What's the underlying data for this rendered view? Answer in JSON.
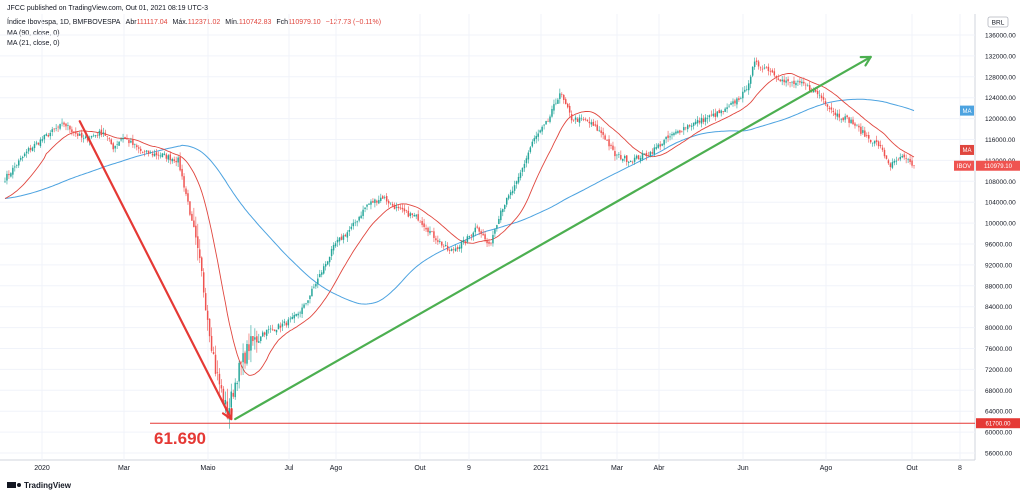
{
  "header": {
    "published": "JFCC published on TradingView.com, Out 01, 2021 08:19 UTC-3",
    "symbol": "Índice Ibovespa, 1D, BMFBOVESPA",
    "ohlc_labels": {
      "open": "Abr",
      "high": "Máx.",
      "low": "Mín.",
      "close": "Fch"
    },
    "ohlc_values": {
      "open": "111117.04",
      "high": "112371.02",
      "low": "110742.83",
      "close": "110979.10",
      "change": "−127.73 (−0.11%)"
    },
    "indicators": [
      "MA (90, close, 0)",
      "MA (21, close, 0)"
    ]
  },
  "currency": "BRL",
  "footer": {
    "brand": "TradingView"
  },
  "annotation": {
    "label": "61.690"
  },
  "tags": {
    "ma_slow": "MA",
    "ma_fast": "MA",
    "ibov": "IBOV",
    "ibov_value": "110979.10",
    "support_value": "61700.00"
  },
  "colors": {
    "up": "#26a69a",
    "down": "#ef5350",
    "ma90": "#4da3e0",
    "ma21": "#e0463e",
    "trend": "#4caf50",
    "arrow": "#e53935",
    "ibov_tag": "#ef5350"
  },
  "chart_data": {
    "type": "candlestick",
    "symbol": "Índice Ibovespa, 1D, BMFBOVESPA",
    "ylim": [
      54000,
      138000
    ],
    "yticks": [
      56000,
      60000,
      64000,
      68000,
      72000,
      76000,
      80000,
      84000,
      88000,
      92000,
      96000,
      100000,
      104000,
      108000,
      112000,
      116000,
      120000,
      124000,
      128000,
      132000,
      136000
    ],
    "ytick_labels": [
      "56000.00",
      "60000.00",
      "64000.00",
      "68000.00",
      "72000.00",
      "76000.00",
      "80000.00",
      "84000.00",
      "88000.00",
      "92000.00",
      "96000.00",
      "100000.00",
      "104000.00",
      "108000.00",
      "112000.00",
      "116000.00",
      "120000.00",
      "124000.00",
      "128000.00",
      "132000.00",
      "136000.00"
    ],
    "xtick_labels": [
      "2020",
      "Mar",
      "Maio",
      "Jul",
      "Ago",
      "Out",
      "9",
      "2021",
      "Mar",
      "Abr",
      "Jun",
      "Ago",
      "Out",
      "8"
    ],
    "anchors": [
      [
        0,
        108500
      ],
      [
        12,
        114000
      ],
      [
        22,
        117000
      ],
      [
        30,
        119000
      ],
      [
        40,
        116000
      ],
      [
        50,
        117500
      ],
      [
        55,
        114500
      ],
      [
        60,
        116500
      ],
      [
        70,
        113500
      ],
      [
        80,
        113000
      ],
      [
        88,
        112000
      ],
      [
        93,
        104000
      ],
      [
        100,
        90000
      ],
      [
        107,
        72000
      ],
      [
        113,
        63500
      ],
      [
        118,
        71000
      ],
      [
        124,
        76500
      ],
      [
        131,
        79000
      ],
      [
        138,
        80000
      ],
      [
        146,
        81500
      ],
      [
        152,
        84000
      ],
      [
        160,
        90000
      ],
      [
        168,
        96000
      ],
      [
        176,
        99000
      ],
      [
        184,
        103500
      ],
      [
        192,
        105000
      ],
      [
        200,
        102500
      ],
      [
        210,
        101000
      ],
      [
        218,
        97500
      ],
      [
        226,
        94500
      ],
      [
        234,
        96500
      ],
      [
        240,
        99500
      ],
      [
        246,
        95500
      ],
      [
        252,
        102500
      ],
      [
        260,
        107500
      ],
      [
        268,
        115500
      ],
      [
        276,
        119500
      ],
      [
        282,
        125000
      ],
      [
        288,
        120000
      ],
      [
        296,
        119500
      ],
      [
        304,
        117000
      ],
      [
        310,
        113000
      ],
      [
        318,
        112000
      ],
      [
        328,
        113500
      ],
      [
        336,
        116000
      ],
      [
        346,
        118500
      ],
      [
        356,
        120000
      ],
      [
        366,
        121500
      ],
      [
        376,
        125000
      ],
      [
        381,
        130500
      ],
      [
        388,
        129500
      ],
      [
        396,
        127000
      ],
      [
        406,
        126500
      ],
      [
        414,
        124500
      ],
      [
        422,
        121000
      ],
      [
        430,
        119500
      ],
      [
        438,
        116500
      ],
      [
        444,
        115000
      ],
      [
        450,
        111000
      ],
      [
        456,
        112500
      ],
      [
        462,
        110979
      ]
    ],
    "ma90_last": 122500,
    "ma21_last": 114000,
    "last_close": 110979.1,
    "support_level": 61700,
    "trendline": [
      [
        117,
        62500
      ],
      [
        440,
        131800
      ]
    ],
    "down_arrow": [
      [
        38,
        119500
      ],
      [
        115,
        62500
      ]
    ],
    "annotation_value": "61.690",
    "series": [
      {
        "name": "MA (90, close, 0)",
        "type": "line"
      },
      {
        "name": "MA (21, close, 0)",
        "type": "line"
      }
    ]
  }
}
